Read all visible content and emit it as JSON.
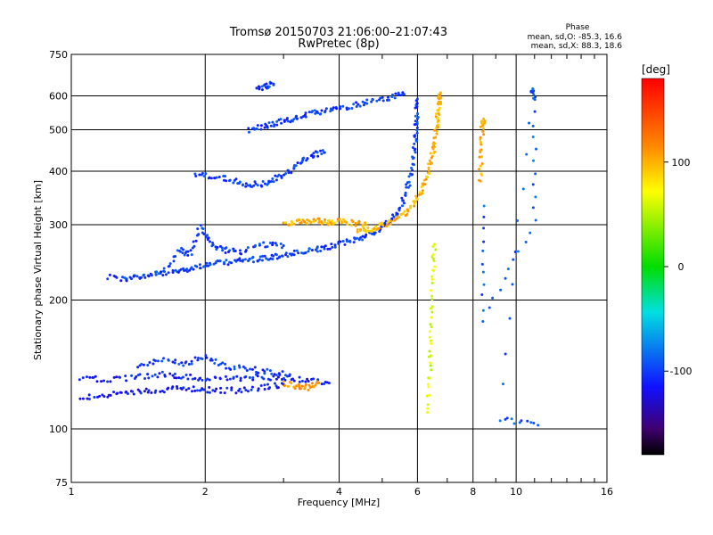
{
  "title": "Tromsø 20150703 21:06:00–21:07:43",
  "subtitle": "RwPretec (8p)",
  "phase_box": {
    "heading": "Phase",
    "line_o": "mean, sd,O: -85.3, 16.6",
    "line_x": "mean, sd,X: 88.3, 18.6"
  },
  "colorbar": {
    "unit": "[deg]",
    "ticks": [
      "100",
      "0",
      "-100"
    ],
    "tick_values": [
      100,
      0,
      -100
    ],
    "range": [
      -180,
      180
    ]
  },
  "chart_data": {
    "type": "scatter",
    "xlabel": "Frequency [MHz]",
    "ylabel": "Stationary phase Virtual Height [km]",
    "x_scale": "log",
    "y_scale": "log",
    "xlim": [
      1,
      16
    ],
    "ylim": [
      75,
      750
    ],
    "x_ticks": [
      1,
      2,
      4,
      6,
      8,
      10,
      16
    ],
    "x_tick_labels": [
      "1",
      "2",
      "4",
      "6",
      "8",
      "10",
      "16"
    ],
    "y_ticks": [
      75,
      100,
      200,
      300,
      400,
      500,
      600,
      750
    ],
    "y_tick_labels": [
      "75",
      "100",
      "200",
      "300",
      "400",
      "500",
      "600",
      "750"
    ],
    "grid": true,
    "traces": [
      {
        "points": [
          [
            1.3,
            225
          ],
          [
            1.5,
            228
          ],
          [
            1.7,
            232
          ],
          [
            1.8,
            236
          ],
          [
            1.95,
            240
          ],
          [
            2.1,
            243
          ],
          [
            2.3,
            246
          ],
          [
            2.5,
            248
          ],
          [
            2.7,
            250
          ],
          [
            2.9,
            253
          ],
          [
            3.1,
            256
          ],
          [
            3.4,
            260
          ],
          [
            3.7,
            264
          ],
          [
            4.0,
            270
          ],
          [
            4.3,
            276
          ],
          [
            4.6,
            283
          ],
          [
            4.9,
            292
          ],
          [
            5.2,
            305
          ],
          [
            5.45,
            325
          ],
          [
            5.65,
            355
          ],
          [
            5.8,
            395
          ],
          [
            5.9,
            445
          ],
          [
            5.95,
            495
          ],
          [
            5.98,
            540
          ],
          [
            6.0,
            590
          ]
        ],
        "phase": -100
      },
      {
        "points": [
          [
            4.4,
            290
          ],
          [
            4.7,
            292
          ],
          [
            5.0,
            298
          ],
          [
            5.3,
            306
          ],
          [
            5.6,
            318
          ],
          [
            5.9,
            335
          ],
          [
            6.1,
            360
          ],
          [
            6.3,
            390
          ],
          [
            6.45,
            425
          ],
          [
            6.55,
            465
          ],
          [
            6.62,
            505
          ],
          [
            6.67,
            545
          ],
          [
            6.72,
            585
          ],
          [
            6.76,
            610
          ]
        ],
        "phase": 100
      },
      {
        "points": [
          [
            3.0,
            302
          ],
          [
            3.2,
            305
          ],
          [
            3.4,
            304
          ],
          [
            3.6,
            306
          ],
          [
            3.8,
            303
          ],
          [
            4.0,
            305
          ],
          [
            4.3,
            303
          ],
          [
            4.6,
            300
          ]
        ],
        "phase": 100
      },
      {
        "points": [
          [
            1.9,
            392
          ],
          [
            2.1,
            390
          ],
          [
            2.3,
            380
          ],
          [
            2.5,
            372
          ],
          [
            2.7,
            374
          ],
          [
            2.9,
            385
          ],
          [
            3.1,
            400
          ],
          [
            3.3,
            420
          ],
          [
            3.5,
            438
          ],
          [
            3.7,
            442
          ]
        ],
        "phase": -100
      },
      {
        "points": [
          [
            2.5,
            500
          ],
          [
            2.7,
            510
          ],
          [
            2.9,
            518
          ],
          [
            3.1,
            528
          ],
          [
            3.3,
            538
          ],
          [
            3.6,
            550
          ],
          [
            3.9,
            558
          ],
          [
            4.3,
            570
          ],
          [
            4.7,
            582
          ],
          [
            5.2,
            595
          ],
          [
            5.6,
            605
          ]
        ],
        "phase": -100
      },
      {
        "points": [
          [
            2.6,
            625
          ],
          [
            2.75,
            633
          ],
          [
            2.85,
            640
          ]
        ],
        "phase": -100
      },
      {
        "points": [
          [
            1.05,
            118
          ],
          [
            1.2,
            120
          ],
          [
            1.35,
            121
          ],
          [
            1.5,
            123
          ],
          [
            1.7,
            124
          ],
          [
            1.9,
            124
          ],
          [
            2.1,
            123
          ],
          [
            2.4,
            123
          ],
          [
            2.7,
            125
          ],
          [
            3.0,
            127
          ]
        ],
        "phase": -115
      },
      {
        "points": [
          [
            1.05,
            132
          ],
          [
            1.2,
            130
          ],
          [
            1.4,
            132
          ],
          [
            1.6,
            134
          ],
          [
            1.8,
            133
          ],
          [
            2.0,
            131
          ],
          [
            2.3,
            131
          ],
          [
            2.6,
            132
          ],
          [
            3.0,
            132
          ],
          [
            3.4,
            130
          ],
          [
            3.8,
            128
          ]
        ],
        "phase": -110
      },
      {
        "points": [
          [
            1.4,
            140
          ],
          [
            1.6,
            146
          ],
          [
            1.8,
            142
          ],
          [
            2.0,
            148
          ],
          [
            2.2,
            140
          ],
          [
            2.5,
            138
          ],
          [
            2.8,
            136
          ],
          [
            3.1,
            134
          ]
        ],
        "phase": -100
      },
      {
        "points": [
          [
            3.0,
            128
          ],
          [
            3.2,
            126
          ],
          [
            3.4,
            125
          ],
          [
            3.6,
            128
          ]
        ],
        "phase": 110
      },
      {
        "points": [
          [
            1.2,
            226
          ],
          [
            1.4,
            224
          ],
          [
            1.6,
            232
          ],
          [
            1.75,
            262
          ],
          [
            1.85,
            255
          ],
          [
            1.95,
            298
          ],
          [
            2.05,
            272
          ],
          [
            2.2,
            262
          ],
          [
            2.4,
            258
          ],
          [
            2.7,
            270
          ],
          [
            3.0,
            268
          ]
        ],
        "phase": -100
      },
      {
        "points": [
          [
            6.35,
            110
          ],
          [
            6.4,
            140
          ],
          [
            6.45,
            175
          ],
          [
            6.5,
            230
          ],
          [
            6.55,
            270
          ]
        ],
        "phase": 60
      },
      {
        "points": [
          [
            8.3,
            380
          ],
          [
            8.35,
            440
          ],
          [
            8.4,
            510
          ],
          [
            8.45,
            530
          ]
        ],
        "phase": 100
      },
      {
        "points": [
          [
            8.4,
            330
          ],
          [
            8.45,
            180
          ],
          [
            11.0,
            305
          ],
          [
            11.0,
            590
          ],
          [
            10.8,
            625
          ],
          [
            9.2,
            106
          ],
          [
            11.2,
            102
          ]
        ],
        "phase": -90
      }
    ]
  }
}
